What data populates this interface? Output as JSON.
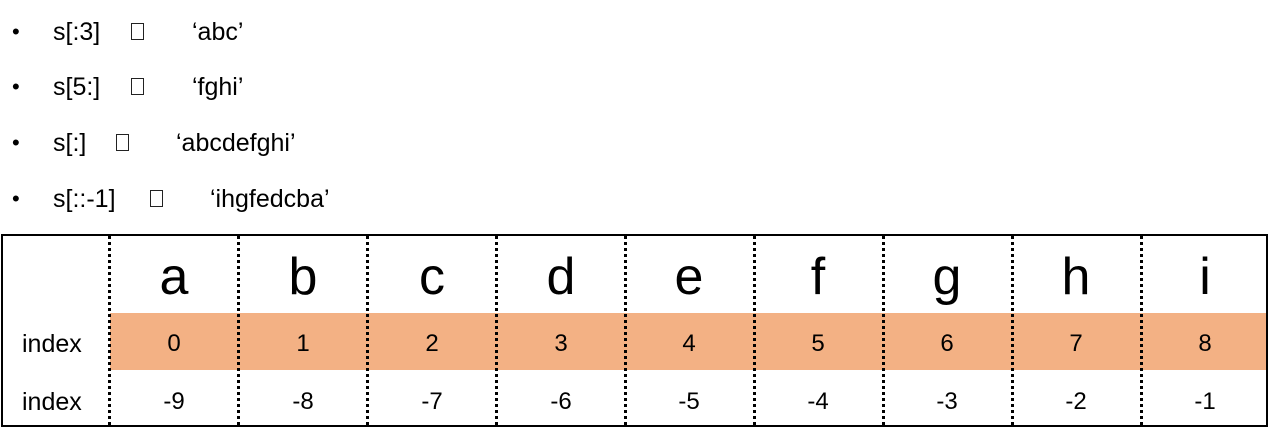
{
  "bullets": [
    {
      "marker": "•",
      "expr": "s[:3]",
      "arrow_icon": "arrow-icon",
      "result": "‘abc’"
    },
    {
      "marker": "•",
      "expr": "s[5:]",
      "arrow_icon": "arrow-icon",
      "result": "‘fghi’"
    },
    {
      "marker": "•",
      "expr": "s[:]",
      "arrow_icon": "arrow-icon",
      "result": "‘abcdefghi’"
    },
    {
      "marker": "•",
      "expr": "s[::-1]",
      "arrow_icon": "arrow-icon",
      "result": "‘ihgfedcba’"
    }
  ],
  "table": {
    "letters": [
      "a",
      "b",
      "c",
      "d",
      "e",
      "f",
      "g",
      "h",
      "i"
    ],
    "positive_label": "index",
    "positive_indices": [
      "0",
      "1",
      "2",
      "3",
      "4",
      "5",
      "6",
      "7",
      "8"
    ],
    "negative_label": "index",
    "negative_indices": [
      "-9",
      "-8",
      "-7",
      "-6",
      "-5",
      "-4",
      "-3",
      "-2",
      "-1"
    ],
    "highlight_color": "#f3b184"
  }
}
